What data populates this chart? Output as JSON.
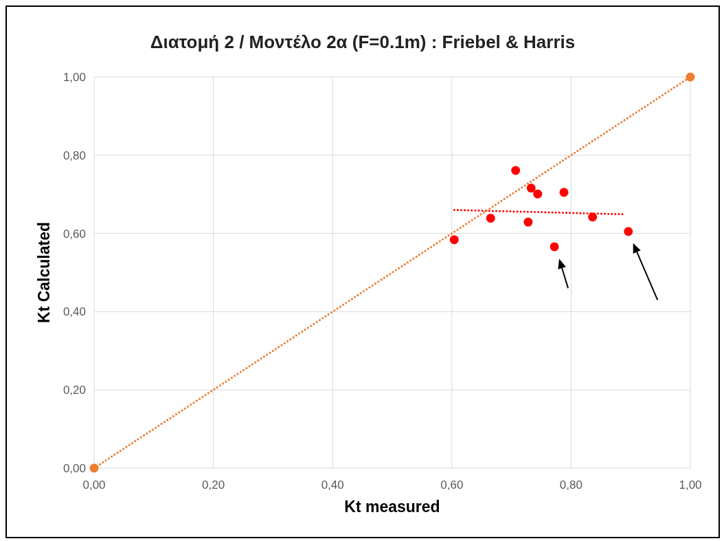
{
  "chart_data": {
    "type": "scatter",
    "title": "Διατομή 2 / Μοντέλο 2α (F=0.1m) : Friebel & Harris",
    "xlabel": "Kt measured",
    "ylabel": "Kt Calculated",
    "series": [
      {
        "color": "#ff0000",
        "marker": "circle",
        "x": [
          0.604,
          0.665,
          0.707,
          0.733,
          0.744,
          0.728,
          0.772,
          0.788,
          0.836,
          0.896
        ],
        "values": [
          0.584,
          0.639,
          0.761,
          0.716,
          0.701,
          0.629,
          0.566,
          0.705,
          0.642,
          0.605
        ]
      },
      {
        "type": "line",
        "color": "#ff0000",
        "line_style": "dotted",
        "marker": "none",
        "x": [
          0.604,
          0.887
        ],
        "values": [
          0.66,
          0.649
        ]
      },
      {
        "type": "line",
        "color": "#ed7d31",
        "line_style": "dotted",
        "marker": "circle",
        "x": [
          0,
          1
        ],
        "values": [
          0,
          1
        ]
      }
    ],
    "xlim": [
      0,
      1
    ],
    "ylim": [
      0,
      1
    ],
    "xticks": [
      {
        "value": 0,
        "label": "0,00"
      },
      {
        "value": 0.2,
        "label": "0,20"
      },
      {
        "value": 0.4,
        "label": "0,40"
      },
      {
        "value": 0.6,
        "label": "0,60"
      },
      {
        "value": 0.8,
        "label": "0,80"
      },
      {
        "value": 1,
        "label": "1,00"
      }
    ],
    "yticks": [
      {
        "value": 0,
        "label": "0,00"
      },
      {
        "value": 0.2,
        "label": "0,20"
      },
      {
        "value": 0.4,
        "label": "0,40"
      },
      {
        "value": 0.6,
        "label": "0,60"
      },
      {
        "value": 0.8,
        "label": "0,80"
      },
      {
        "value": 1,
        "label": "1,00"
      }
    ],
    "grid": true
  }
}
